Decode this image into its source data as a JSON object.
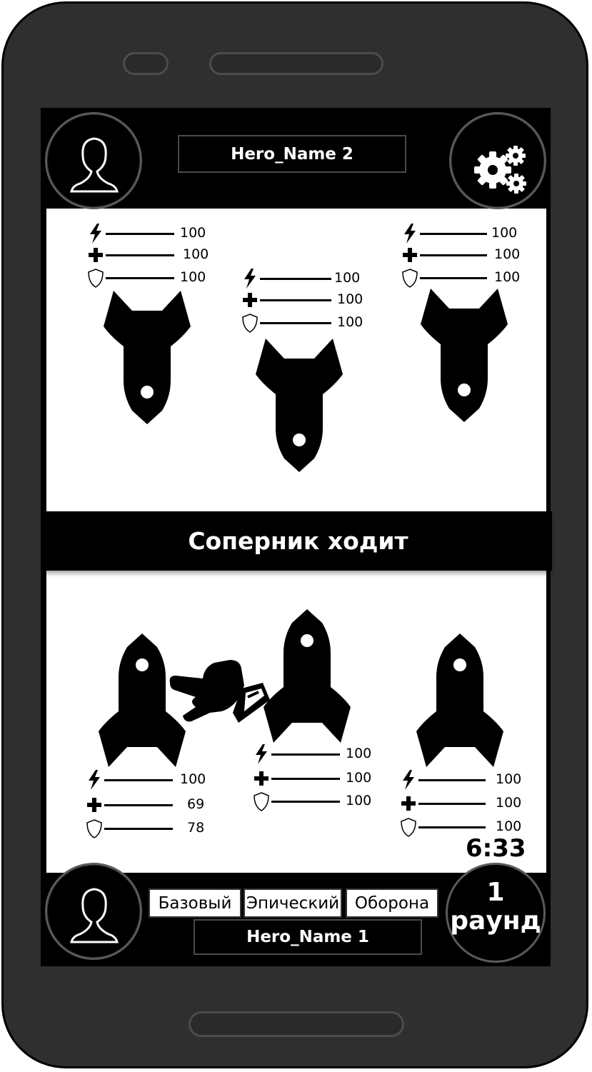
{
  "opponent": {
    "name": "Hero_Name 2"
  },
  "player": {
    "name": "Hero_Name 1"
  },
  "status_banner": "Соперник ходит",
  "timer": "6:33",
  "round": {
    "number": "1",
    "label": "раунд"
  },
  "tabs": [
    "Базовый",
    "Эпический",
    "Оборона"
  ],
  "enemy_ships": [
    {
      "energy": "100",
      "health": "100",
      "shield": "100"
    },
    {
      "energy": "100",
      "health": "100",
      "shield": "100"
    },
    {
      "energy": "100",
      "health": "100",
      "shield": "100"
    }
  ],
  "player_ships": [
    {
      "energy": "100",
      "health": "69",
      "shield": "78"
    },
    {
      "energy": "100",
      "health": "100",
      "shield": "100"
    },
    {
      "energy": "100",
      "health": "100",
      "shield": "100"
    }
  ],
  "icons": {
    "opponent_avatar": "user-icon",
    "settings": "gears-icon",
    "player_avatar": "user-icon",
    "energy": "lightning-icon",
    "health": "plus-icon",
    "shield": "shield-icon",
    "pointer": "pointing-hand-icon"
  },
  "colors": {
    "bezel": "#2f2f2f",
    "screen": "#000000",
    "field": "#ffffff"
  }
}
